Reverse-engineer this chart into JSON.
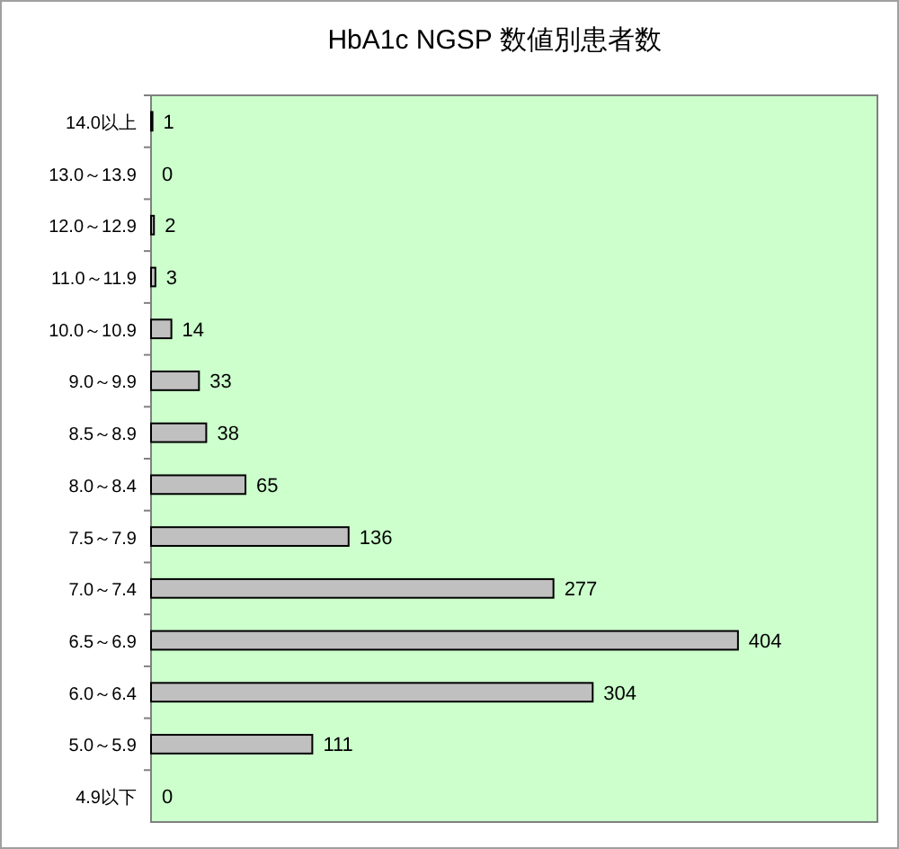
{
  "chart_data": {
    "type": "bar",
    "orientation": "horizontal",
    "title": "HbA1c NGSP 数値別患者数",
    "categories": [
      "14.0以上",
      "13.0～13.9",
      "12.0～12.9",
      "11.0～11.9",
      "10.0～10.9",
      "9.0～9.9",
      "8.5～8.9",
      "8.0～8.4",
      "7.5～7.9",
      "7.0～7.4",
      "6.5～6.9",
      "6.0～6.4",
      "5.0～5.9",
      "4.9以下"
    ],
    "values": [
      1,
      0,
      2,
      3,
      14,
      33,
      38,
      65,
      136,
      277,
      404,
      304,
      111,
      0
    ],
    "color": "#c0c0c0",
    "xlim": [
      0,
      500
    ],
    "data_labels": true
  }
}
